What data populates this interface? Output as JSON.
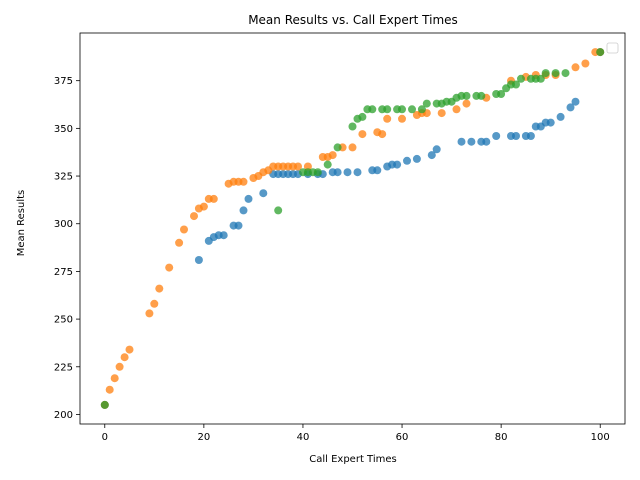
{
  "chart_data": {
    "type": "scatter",
    "title": "Mean Results vs. Call Expert Times",
    "xlabel": "Call Expert Times",
    "ylabel": "Mean Results",
    "xlim": [
      -5,
      105
    ],
    "ylim": [
      195,
      400
    ],
    "xticks": [
      0,
      20,
      40,
      60,
      80,
      100
    ],
    "yticks": [
      200,
      225,
      250,
      275,
      300,
      325,
      350,
      375
    ],
    "grid": false,
    "legend": {
      "placement": "top-right",
      "entries": []
    },
    "series": [
      {
        "color": "#1f77b4",
        "points": [
          [
            0,
            205
          ],
          [
            19,
            281
          ],
          [
            21,
            291
          ],
          [
            22,
            293
          ],
          [
            23,
            294
          ],
          [
            24,
            294
          ],
          [
            26,
            299
          ],
          [
            27,
            299
          ],
          [
            28,
            307
          ],
          [
            29,
            313
          ],
          [
            32,
            316
          ],
          [
            34,
            326
          ],
          [
            35,
            326
          ],
          [
            36,
            326
          ],
          [
            37,
            326
          ],
          [
            38,
            326
          ],
          [
            39,
            326
          ],
          [
            41,
            326
          ],
          [
            43,
            326
          ],
          [
            44,
            326
          ],
          [
            46,
            327
          ],
          [
            47,
            327
          ],
          [
            49,
            327
          ],
          [
            51,
            327
          ],
          [
            54,
            328
          ],
          [
            55,
            328
          ],
          [
            57,
            330
          ],
          [
            58,
            331
          ],
          [
            59,
            331
          ],
          [
            61,
            333
          ],
          [
            63,
            334
          ],
          [
            66,
            336
          ],
          [
            67,
            339
          ],
          [
            72,
            343
          ],
          [
            74,
            343
          ],
          [
            76,
            343
          ],
          [
            77,
            343
          ],
          [
            79,
            346
          ],
          [
            82,
            346
          ],
          [
            83,
            346
          ],
          [
            85,
            346
          ],
          [
            86,
            346
          ],
          [
            87,
            351
          ],
          [
            88,
            351
          ],
          [
            89,
            353
          ],
          [
            90,
            353
          ],
          [
            92,
            356
          ],
          [
            94,
            361
          ],
          [
            95,
            364
          ],
          [
            100,
            390
          ]
        ]
      },
      {
        "color": "#ff7f0e",
        "points": [
          [
            0,
            205
          ],
          [
            1,
            213
          ],
          [
            2,
            219
          ],
          [
            3,
            225
          ],
          [
            4,
            230
          ],
          [
            5,
            234
          ],
          [
            9,
            253
          ],
          [
            10,
            258
          ],
          [
            11,
            266
          ],
          [
            13,
            277
          ],
          [
            15,
            290
          ],
          [
            16,
            297
          ],
          [
            18,
            304
          ],
          [
            19,
            308
          ],
          [
            20,
            309
          ],
          [
            21,
            313
          ],
          [
            22,
            313
          ],
          [
            25,
            321
          ],
          [
            26,
            322
          ],
          [
            27,
            322
          ],
          [
            28,
            322
          ],
          [
            30,
            324
          ],
          [
            31,
            325
          ],
          [
            32,
            327
          ],
          [
            33,
            328
          ],
          [
            34,
            330
          ],
          [
            35,
            330
          ],
          [
            36,
            330
          ],
          [
            37,
            330
          ],
          [
            38,
            330
          ],
          [
            39,
            330
          ],
          [
            41,
            330
          ],
          [
            44,
            335
          ],
          [
            45,
            335
          ],
          [
            46,
            336
          ],
          [
            48,
            340
          ],
          [
            50,
            340
          ],
          [
            52,
            347
          ],
          [
            55,
            348
          ],
          [
            56,
            347
          ],
          [
            57,
            355
          ],
          [
            60,
            355
          ],
          [
            63,
            357
          ],
          [
            64,
            358
          ],
          [
            65,
            358
          ],
          [
            68,
            358
          ],
          [
            71,
            360
          ],
          [
            73,
            363
          ],
          [
            77,
            366
          ],
          [
            82,
            375
          ],
          [
            85,
            377
          ],
          [
            87,
            378
          ],
          [
            89,
            378
          ],
          [
            91,
            378
          ],
          [
            95,
            382
          ],
          [
            97,
            384
          ],
          [
            99,
            390
          ],
          [
            100,
            390
          ]
        ]
      },
      {
        "color": "#2ca02c",
        "points": [
          [
            0,
            205
          ],
          [
            35,
            307
          ],
          [
            40,
            327
          ],
          [
            41,
            327
          ],
          [
            42,
            327
          ],
          [
            43,
            327
          ],
          [
            45,
            331
          ],
          [
            47,
            340
          ],
          [
            50,
            351
          ],
          [
            51,
            355
          ],
          [
            52,
            356
          ],
          [
            53,
            360
          ],
          [
            54,
            360
          ],
          [
            56,
            360
          ],
          [
            57,
            360
          ],
          [
            59,
            360
          ],
          [
            60,
            360
          ],
          [
            62,
            360
          ],
          [
            64,
            360
          ],
          [
            65,
            363
          ],
          [
            67,
            363
          ],
          [
            68,
            363
          ],
          [
            69,
            364
          ],
          [
            70,
            364
          ],
          [
            71,
            366
          ],
          [
            72,
            367
          ],
          [
            73,
            367
          ],
          [
            75,
            367
          ],
          [
            76,
            367
          ],
          [
            79,
            368
          ],
          [
            80,
            368
          ],
          [
            81,
            371
          ],
          [
            82,
            373
          ],
          [
            83,
            373
          ],
          [
            84,
            376
          ],
          [
            86,
            376
          ],
          [
            87,
            376
          ],
          [
            88,
            376
          ],
          [
            89,
            379
          ],
          [
            91,
            379
          ],
          [
            93,
            379
          ],
          [
            100,
            390
          ]
        ]
      }
    ]
  }
}
